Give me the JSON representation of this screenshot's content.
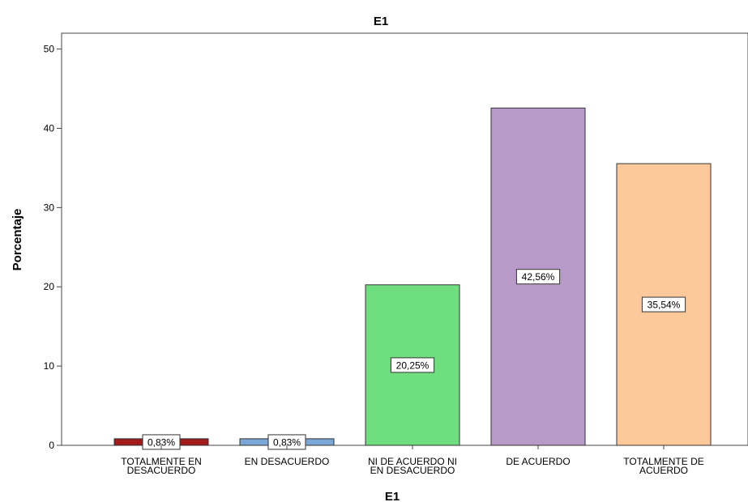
{
  "chart_data": {
    "type": "bar",
    "title": "E1",
    "xlabel": "E1",
    "ylabel": "Porcentaje",
    "ylim": [
      0,
      52
    ],
    "yticks": [
      0,
      10,
      20,
      30,
      40,
      50
    ],
    "grid": false,
    "categories": [
      [
        "TOTALMENTE EN",
        "DESACUERDO"
      ],
      [
        "EN DESACUERDO"
      ],
      [
        "NI DE ACUERDO NI",
        "EN DESACUERDO"
      ],
      [
        "DE ACUERDO"
      ],
      [
        "TOTALMENTE DE",
        "ACUERDO"
      ]
    ],
    "values": [
      0.83,
      0.83,
      20.25,
      42.56,
      35.54
    ],
    "data_labels": [
      "0,83%",
      "0,83%",
      "20,25%",
      "42,56%",
      "35,54%"
    ],
    "colors": [
      "#a31a1a",
      "#7ba7d6",
      "#6fde7f",
      "#b89ac8",
      "#fdc99a"
    ]
  }
}
